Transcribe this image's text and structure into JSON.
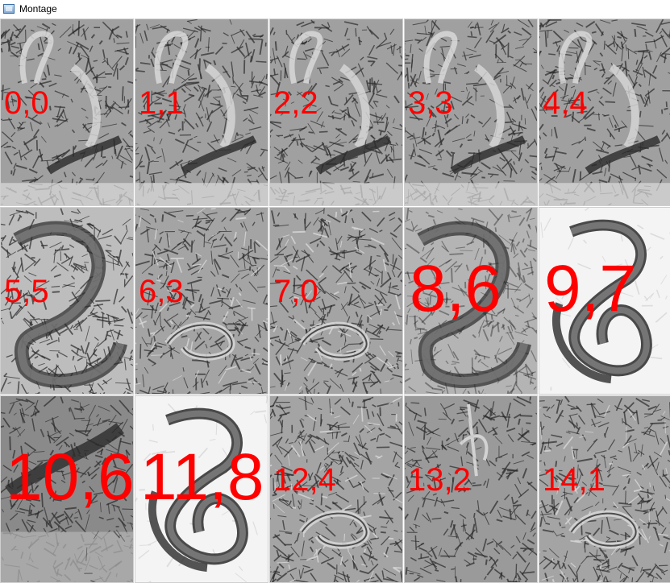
{
  "window": {
    "title": "Montage",
    "icon": "app-window-icon"
  },
  "tiles": [
    {
      "label": "0,0",
      "style": "jungle-crocodile",
      "size": "small"
    },
    {
      "label": "1,1",
      "style": "jungle-crocodile",
      "size": "small"
    },
    {
      "label": "2,2",
      "style": "jungle-crocodile",
      "size": "small"
    },
    {
      "label": "3,3",
      "style": "jungle-crocodile",
      "size": "small"
    },
    {
      "label": "4,4",
      "style": "jungle-crocodile",
      "size": "small"
    },
    {
      "label": "5,5",
      "style": "coiled-python",
      "size": "small"
    },
    {
      "label": "6,3",
      "style": "forest-snake",
      "size": "small"
    },
    {
      "label": "7,0",
      "style": "forest-snake",
      "size": "small"
    },
    {
      "label": "8,6",
      "style": "coiled-python-faded",
      "size": "large"
    },
    {
      "label": "9,7",
      "style": "coiled-snake-white",
      "size": "large"
    },
    {
      "label": "10,6",
      "style": "swamp-crocodile",
      "size": "large"
    },
    {
      "label": "11,8",
      "style": "coiled-snake-white",
      "size": "large"
    },
    {
      "label": "12,4",
      "style": "forest-snake",
      "size": "small"
    },
    {
      "label": "13,2",
      "style": "forest-bird",
      "size": "small"
    },
    {
      "label": "14,1",
      "style": "forest-snake",
      "size": "small"
    }
  ],
  "colors": {
    "label": "#ff0000",
    "engraving_dark": "#2a2a2a",
    "engraving_mid": "#7a7a7a",
    "engraving_light": "#d8d8d8"
  }
}
